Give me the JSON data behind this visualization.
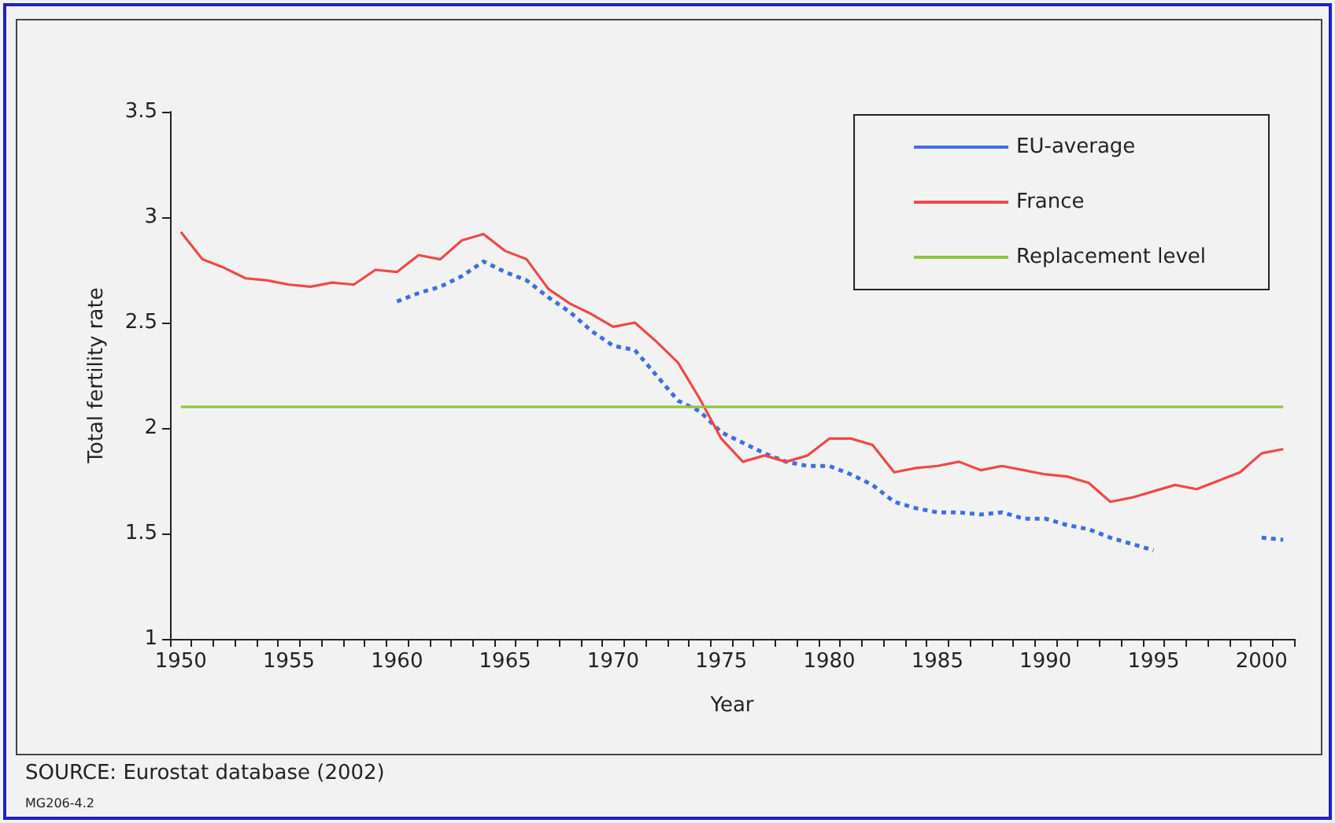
{
  "chart_data": {
    "type": "line",
    "xlabel": "Year",
    "ylabel": "Total fertility rate",
    "categories": [
      "1950",
      null,
      null,
      null,
      null,
      "1955",
      null,
      null,
      null,
      null,
      "1960",
      null,
      null,
      null,
      null,
      "1965",
      null,
      null,
      null,
      null,
      "1970",
      null,
      null,
      null,
      null,
      "1975",
      null,
      null,
      null,
      null,
      "1980",
      null,
      null,
      null,
      null,
      "1985",
      null,
      null,
      null,
      null,
      "1990",
      null,
      null,
      null,
      null,
      "1995",
      null,
      null,
      null,
      null,
      "2000",
      null
    ],
    "series": [
      {
        "name": "EU-average",
        "color": "#3f6fe0",
        "line_style": "dashed",
        "values": [
          null,
          null,
          null,
          null,
          null,
          null,
          null,
          null,
          null,
          null,
          2.6,
          2.64,
          2.67,
          2.72,
          2.79,
          2.74,
          2.7,
          2.62,
          2.55,
          2.46,
          2.39,
          2.37,
          2.25,
          2.13,
          2.08,
          1.98,
          1.93,
          1.88,
          1.84,
          1.82,
          1.82,
          1.78,
          1.73,
          1.65,
          1.62,
          1.6,
          1.6,
          1.59,
          1.6,
          1.57,
          1.57,
          1.54,
          1.52,
          1.48,
          1.45,
          1.42,
          null,
          null,
          null,
          null,
          1.48,
          1.47
        ]
      },
      {
        "name": "France",
        "color": "#f04848",
        "line_style": "solid",
        "values": [
          2.93,
          2.8,
          2.76,
          2.71,
          2.7,
          2.68,
          2.67,
          2.69,
          2.68,
          2.75,
          2.74,
          2.82,
          2.8,
          2.89,
          2.92,
          2.84,
          2.8,
          2.66,
          2.59,
          2.54,
          2.48,
          2.5,
          2.41,
          2.31,
          2.14,
          1.95,
          1.84,
          1.87,
          1.84,
          1.87,
          1.95,
          1.95,
          1.92,
          1.79,
          1.81,
          1.82,
          1.84,
          1.8,
          1.82,
          1.8,
          1.78,
          1.77,
          1.74,
          1.65,
          1.67,
          1.7,
          1.73,
          1.71,
          1.75,
          1.79,
          1.88,
          1.9
        ]
      },
      {
        "name": "Replacement level",
        "color": "#8ec63f",
        "line_style": "solid",
        "values": [
          2.1,
          2.1,
          2.1,
          2.1,
          2.1,
          2.1,
          2.1,
          2.1,
          2.1,
          2.1,
          2.1,
          2.1,
          2.1,
          2.1,
          2.1,
          2.1,
          2.1,
          2.1,
          2.1,
          2.1,
          2.1,
          2.1,
          2.1,
          2.1,
          2.1,
          2.1,
          2.1,
          2.1,
          2.1,
          2.1,
          2.1,
          2.1,
          2.1,
          2.1,
          2.1,
          2.1,
          2.1,
          2.1,
          2.1,
          2.1,
          2.1,
          2.1,
          2.1,
          2.1,
          2.1,
          2.1,
          2.1,
          2.1,
          2.1,
          2.1,
          2.1,
          2.1
        ]
      }
    ],
    "ylim": [
      1,
      3.5
    ],
    "yticks": [
      1,
      1.5,
      2,
      2.5,
      3,
      3.5
    ],
    "grid": false,
    "legend": "top right",
    "marker": "none",
    "annotations": [
      "SOURCE: Eurostat database (2002)",
      "MG206-4.2"
    ]
  }
}
